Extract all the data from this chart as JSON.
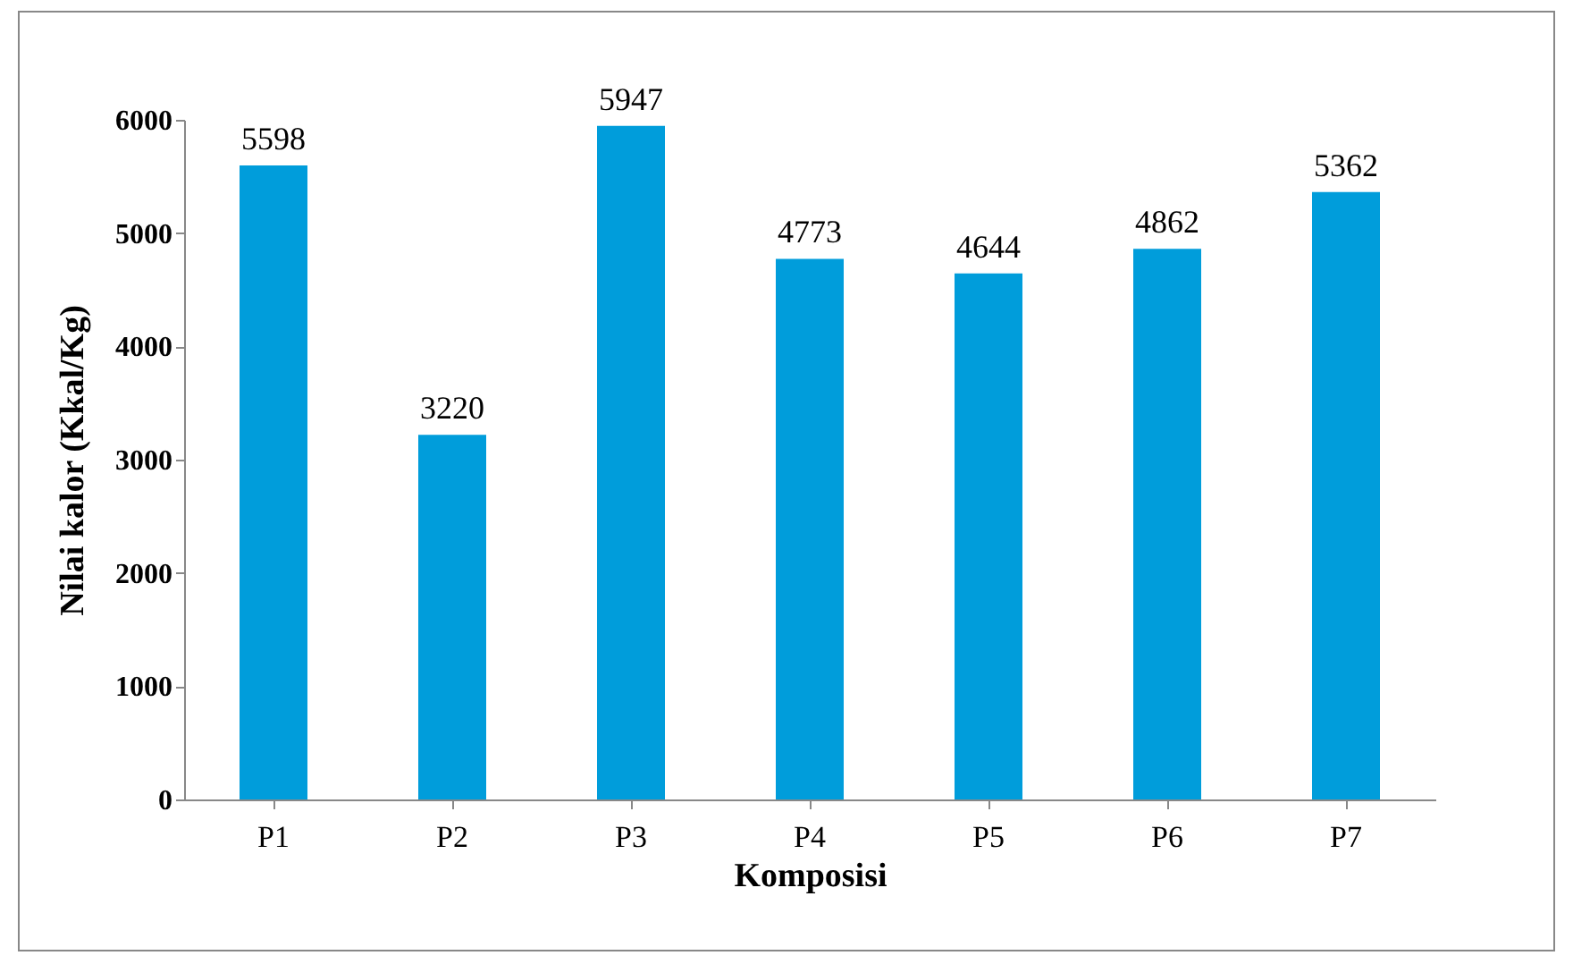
{
  "chart_data": {
    "type": "bar",
    "xlabel": "Komposisi",
    "ylabel": "Nilai kalor (Kkal/Kg)",
    "categories": [
      "P1",
      "P2",
      "P3",
      "P4",
      "P5",
      "P6",
      "P7"
    ],
    "values": [
      5598,
      3220,
      5947,
      4773,
      4644,
      4862,
      5362
    ],
    "color": "#009ddb",
    "ylim": [
      0,
      6000
    ],
    "yticks": [
      0,
      1000,
      2000,
      3000,
      4000,
      5000,
      6000
    ],
    "grid": false,
    "data_labels": true
  }
}
